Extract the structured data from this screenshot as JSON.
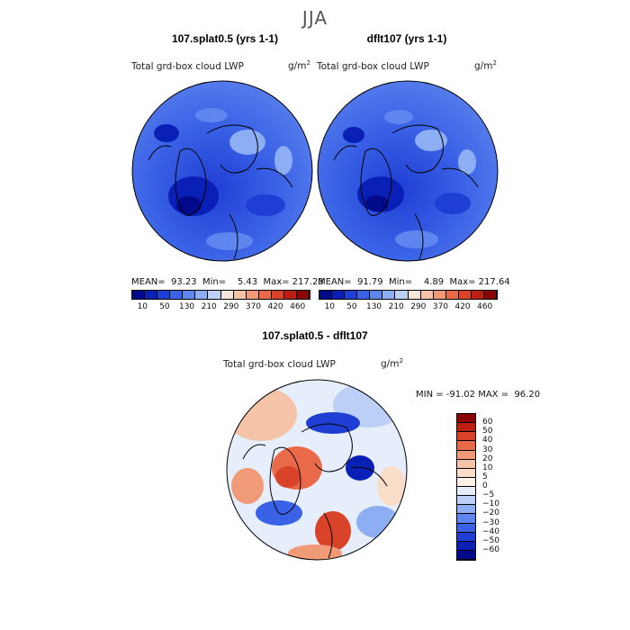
{
  "title": "JJA",
  "panels": [
    {
      "title": "107.splat0.5 (yrs 1-1)",
      "variable": "Total grd-box cloud LWP",
      "units_base": "g/m",
      "units_exp": "2",
      "stats": "MEAN=  93.23  Min=    5.43  Max= 217.23"
    },
    {
      "title": "dflt107 (yrs 1-1)",
      "variable": "Total grd-box cloud LWP",
      "units_base": "g/m",
      "units_exp": "2",
      "stats": "MEAN=  91.79  Min=    4.89  Max= 217.64"
    }
  ],
  "colorbar_top": {
    "ticks": [
      "10",
      "50",
      "130",
      "210",
      "290",
      "370",
      "420",
      "460"
    ],
    "colors": [
      "#000a8a",
      "#0a1fb5",
      "#1f3fd4",
      "#3a62e6",
      "#5f86ee",
      "#8eaef3",
      "#bcd0f7",
      "#f6e6d9",
      "#f5c3a8",
      "#f19a78",
      "#e86a48",
      "#d8432a",
      "#bc1e10",
      "#8c0505"
    ]
  },
  "difference": {
    "title": "107.splat0.5 - dflt107",
    "variable": "Total grd-box cloud LWP",
    "units_base": "g/m",
    "units_exp": "2",
    "minmax": "MIN = -91.02 MAX =  96.20",
    "ticks": [
      "60",
      "50",
      "40",
      "30",
      "20",
      "10",
      "5",
      "0",
      "−5",
      "−10",
      "−20",
      "−30",
      "−40",
      "−50",
      "−60"
    ],
    "colors": [
      "#8c0505",
      "#bc1e10",
      "#d8432a",
      "#e86a48",
      "#f19a78",
      "#f5c3a8",
      "#f9ddc8",
      "#fdf0e6",
      "#e6eefc",
      "#bcd0f7",
      "#8eaef3",
      "#5f86ee",
      "#3a62e6",
      "#1f3fd4",
      "#0a1fb5",
      "#000a8a"
    ]
  }
}
